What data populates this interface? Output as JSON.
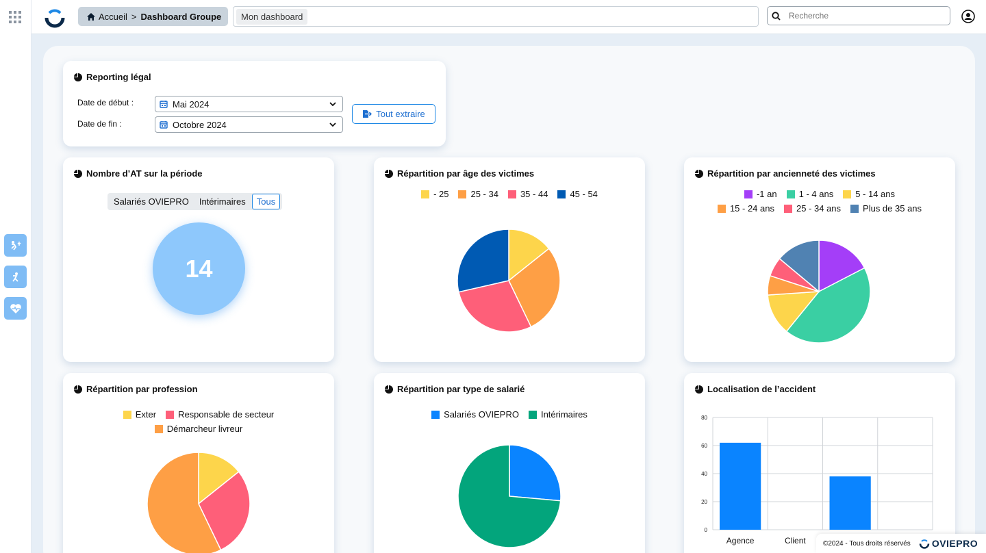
{
  "header": {
    "breadcrumb_home": "Accueil",
    "breadcrumb_sep": ">",
    "breadcrumb_current": "Dashboard Groupe",
    "tab": "Mon dashboard",
    "search_placeholder": "Recherche"
  },
  "rail": {
    "icons": [
      "injury-icon",
      "fall-icon",
      "heartbeat-icon"
    ]
  },
  "reporting": {
    "title": "Reporting légal",
    "start_label": "Date de début :",
    "start_value": "Mai 2024",
    "end_label": "Date de fin :",
    "end_value": "Octobre 2024",
    "export_label": "Tout extraire"
  },
  "count_card": {
    "title": "Nombre d’AT sur la période",
    "filters": [
      "Salariés OVIEPRO",
      "Intérimaires",
      "Tous"
    ],
    "active_filter": "Tous",
    "value": "14"
  },
  "age_card": {
    "title": "Répartition par âge des victimes"
  },
  "seniority_card": {
    "title": "Répartition par ancienneté des victimes"
  },
  "profession_card": {
    "title": "Répartition par profession"
  },
  "type_card": {
    "title": "Répartition par type de salarié"
  },
  "location_card": {
    "title": "Localisation de l’accident"
  },
  "footer": {
    "copyright": "©2024 - Tous droits réservés",
    "brand": "OVIEPRO"
  },
  "colors": {
    "accent": "#1e88e5",
    "bubble": "#8ec8fc",
    "bar": "#0a84ff"
  },
  "chart_data": [
    {
      "type": "pie",
      "id": "age",
      "categories": [
        "- 25",
        "25 - 34",
        "35 - 44",
        "45 - 54"
      ],
      "values": [
        2,
        4,
        4,
        4
      ],
      "colors": [
        "#fdd54b",
        "#fe9f45",
        "#fe5f79",
        "#005ab3"
      ]
    },
    {
      "type": "pie",
      "id": "seniority",
      "categories": [
        "-1 an",
        "1 - 4 ans",
        "5 - 14 ans",
        "15 - 24 ans",
        "25 - 34 ans",
        "Plus de 35 ans"
      ],
      "values": [
        2,
        5,
        1.5,
        0.7,
        0.7,
        1.6
      ],
      "colors": [
        "#a43ef8",
        "#3acfa3",
        "#fdd54b",
        "#fe9f45",
        "#fe5f79",
        "#5082b2"
      ]
    },
    {
      "type": "pie",
      "id": "profession",
      "categories": [
        "Exter",
        "Responsable de secteur",
        "Démarcheur livreur"
      ],
      "values": [
        2,
        4,
        8
      ],
      "colors": [
        "#fdd54b",
        "#fe5f79",
        "#fe9f45"
      ]
    },
    {
      "type": "pie",
      "id": "type",
      "categories": [
        "Salariés OVIEPRO",
        "Intérimaires"
      ],
      "values": [
        3.7,
        10.3
      ],
      "colors": [
        "#0a84ff",
        "#03a57c"
      ]
    },
    {
      "type": "bar",
      "id": "location",
      "categories": [
        "Agence",
        "Client",
        "",
        ""
      ],
      "values": [
        62,
        0,
        38,
        0
      ],
      "yticks": [
        0,
        20,
        40,
        60,
        80
      ],
      "ylim": [
        0,
        80
      ]
    }
  ]
}
